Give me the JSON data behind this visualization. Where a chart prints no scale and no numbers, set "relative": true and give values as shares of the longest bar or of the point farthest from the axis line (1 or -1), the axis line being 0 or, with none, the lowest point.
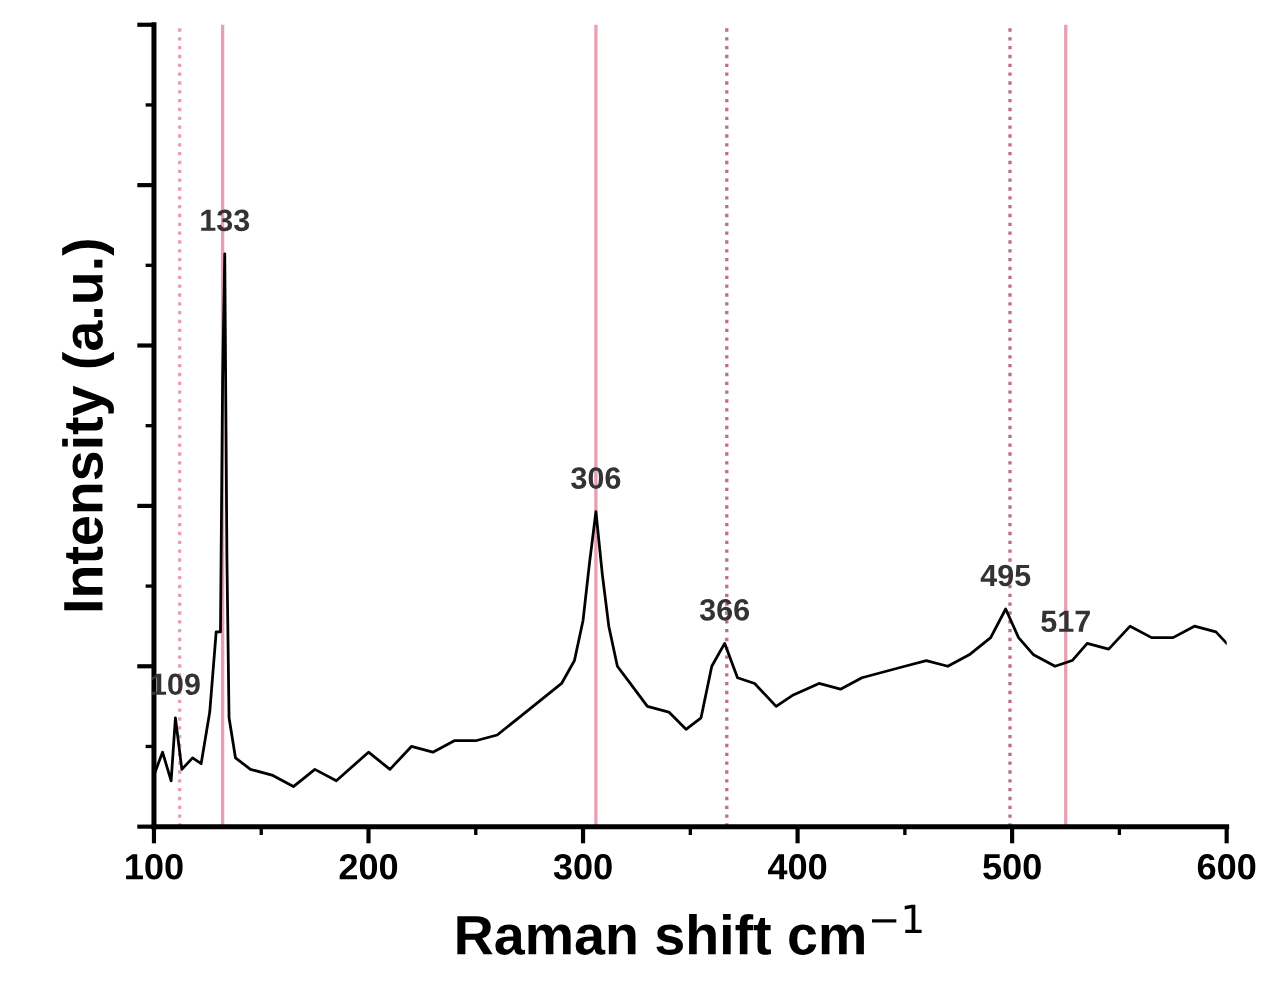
{
  "chart_data": {
    "type": "line",
    "relative": true,
    "xlabel": "Raman shift cm$^{−1}$",
    "ylabel": "Intensity (a.u.)",
    "xlim": [
      100,
      600
    ],
    "xticks": [
      100,
      200,
      300,
      400,
      500,
      600
    ],
    "tick_labels": "x",
    "grid": false,
    "series": [
      {
        "color": "#000000",
        "x": [
          100,
          104,
          108,
          110,
          113,
          118,
          122,
          126,
          129,
          131,
          132,
          133,
          134,
          135,
          138,
          145,
          155,
          165,
          175,
          185,
          200,
          210,
          220,
          230,
          240,
          250,
          260,
          270,
          280,
          290,
          296,
          300,
          303,
          306,
          309,
          312,
          316,
          322,
          330,
          340,
          348,
          355,
          360,
          366,
          372,
          380,
          390,
          398,
          410,
          420,
          430,
          440,
          450,
          460,
          470,
          480,
          490,
          497,
          503,
          510,
          520,
          528,
          535,
          545,
          555,
          565,
          575,
          585,
          595,
          600
        ],
        "values": [
          0.09,
          0.13,
          0.08,
          0.19,
          0.1,
          0.12,
          0.11,
          0.2,
          0.34,
          0.34,
          0.78,
          1.0,
          0.47,
          0.19,
          0.12,
          0.1,
          0.09,
          0.07,
          0.1,
          0.08,
          0.13,
          0.1,
          0.14,
          0.13,
          0.15,
          0.15,
          0.16,
          0.19,
          0.22,
          0.25,
          0.29,
          0.36,
          0.46,
          0.55,
          0.44,
          0.35,
          0.28,
          0.25,
          0.21,
          0.2,
          0.17,
          0.19,
          0.28,
          0.32,
          0.26,
          0.25,
          0.21,
          0.23,
          0.25,
          0.24,
          0.26,
          0.27,
          0.28,
          0.29,
          0.28,
          0.3,
          0.33,
          0.38,
          0.33,
          0.3,
          0.28,
          0.29,
          0.32,
          0.31,
          0.35,
          0.33,
          0.33,
          0.35,
          0.34,
          0.32
        ]
      }
    ],
    "ref_lines": [
      {
        "axis": "x",
        "value": 112,
        "color": "#e8a0b0",
        "line_style": "dotted"
      },
      {
        "axis": "x",
        "value": 132,
        "color": "#e8a0b0",
        "line_style": "solid"
      },
      {
        "axis": "x",
        "value": 306,
        "color": "#e8a0b0",
        "line_style": "solid"
      },
      {
        "axis": "x",
        "value": 367,
        "color": "#c07080",
        "line_style": "dotted"
      },
      {
        "axis": "x",
        "value": 499,
        "color": "#c07080",
        "line_style": "dotted"
      },
      {
        "axis": "x",
        "value": 525,
        "color": "#e8a0b0",
        "line_style": "solid"
      }
    ],
    "annotations": [
      {
        "text": "109",
        "x": 110,
        "y": 0.19
      },
      {
        "text": "133",
        "x": 133,
        "y": 1.0
      },
      {
        "text": "306",
        "x": 306,
        "y": 0.55
      },
      {
        "text": "366",
        "x": 366,
        "y": 0.32
      },
      {
        "text": "495",
        "x": 497,
        "y": 0.38
      },
      {
        "text": "517",
        "x": 525,
        "y": 0.3
      }
    ]
  }
}
